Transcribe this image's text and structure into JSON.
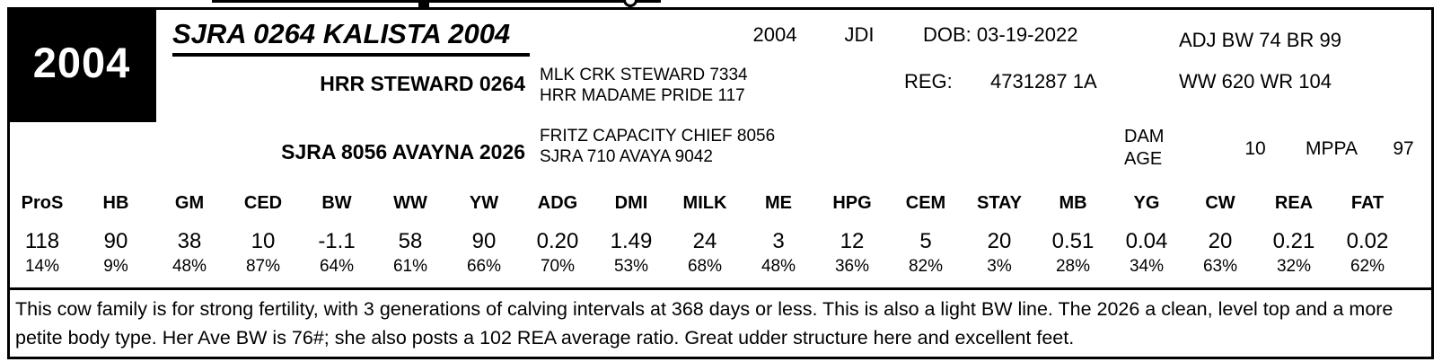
{
  "lot": {
    "number": "2004"
  },
  "header": {
    "name": "SJRA 0264 KALISTA 2004",
    "tattoo": "2004",
    "breeder_code": "JDI",
    "dob": "DOB: 03-19-2022",
    "adj_bw_line": "ADJ BW 74 BR 99",
    "reg_label": "REG:",
    "reg_number": "4731287 1A",
    "ww_wr_line": "WW 620 WR 104"
  },
  "pedigree": {
    "sire": {
      "name": "HRR STEWARD 0264",
      "sire": "MLK CRK STEWARD 7334",
      "dam": "HRR MADAME PRIDE 117"
    },
    "dam": {
      "name": "SJRA 8056 AVAYNA 2026",
      "sire": "FRITZ CAPACITY CHIEF 8056",
      "dam": "SJRA 710 AVAYA 9042"
    }
  },
  "dam_info": {
    "dam_age_label": "DAM AGE",
    "dam_age": "10",
    "mppa_label": "MPPA",
    "mppa": "97"
  },
  "epd": {
    "columns": [
      "ProS",
      "HB",
      "GM",
      "CED",
      "BW",
      "WW",
      "YW",
      "ADG",
      "DMI",
      "MILK",
      "ME",
      "HPG",
      "CEM",
      "STAY",
      "MB",
      "YG",
      "CW",
      "REA",
      "FAT"
    ],
    "values": [
      "118",
      "90",
      "38",
      "10",
      "-1.1",
      "58",
      "90",
      "0.20",
      "1.49",
      "24",
      "3",
      "12",
      "5",
      "20",
      "0.51",
      "0.04",
      "20",
      "0.21",
      "0.02"
    ],
    "percentiles": [
      "14%",
      "9%",
      "48%",
      "87%",
      "64%",
      "61%",
      "66%",
      "70%",
      "53%",
      "68%",
      "48%",
      "36%",
      "82%",
      "3%",
      "28%",
      "34%",
      "63%",
      "32%",
      "62%"
    ]
  },
  "description": "This cow family is for strong fertility, with 3 generations of calving intervals at 368 days or less. This is also a light BW line.  The 2026 a clean, level top and a more petite body type.  Her Ave BW is 76#; she also posts a 102 REA average ratio.  Great udder structure here and excellent feet."
}
